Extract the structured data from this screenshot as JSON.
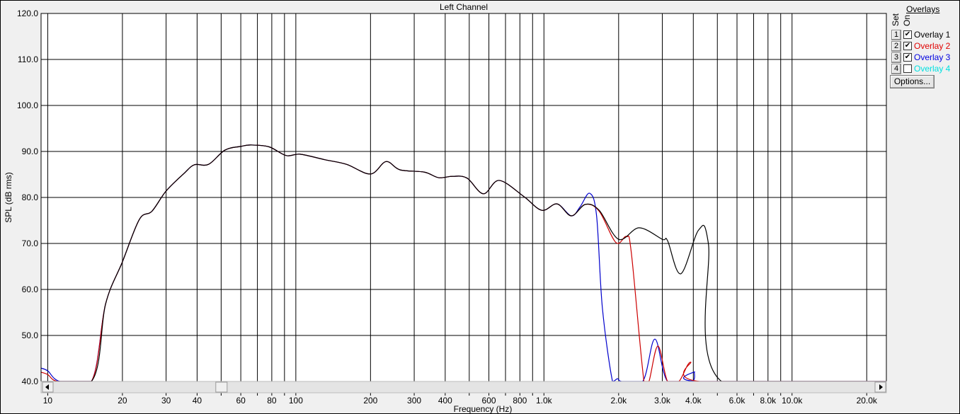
{
  "chart_data": {
    "type": "line",
    "title": "Left Channel",
    "xlabel": "Frequency (Hz)",
    "ylabel": "SPL (dB rms)",
    "xscale": "log",
    "xlim": [
      9.4,
      24000
    ],
    "ylim": [
      40,
      120
    ],
    "grid": true,
    "yticks": [
      "40.0",
      "50.0",
      "60.0",
      "70.0",
      "80.0",
      "90.0",
      "100.0",
      "110.0",
      "120.0"
    ],
    "xtick_labels": [
      {
        "f": 10,
        "label": "10"
      },
      {
        "f": 20,
        "label": "20"
      },
      {
        "f": 30,
        "label": "30"
      },
      {
        "f": 40,
        "label": "40"
      },
      {
        "f": 60,
        "label": "60"
      },
      {
        "f": 80,
        "label": "80"
      },
      {
        "f": 100,
        "label": "100"
      },
      {
        "f": 200,
        "label": "200"
      },
      {
        "f": 300,
        "label": "300"
      },
      {
        "f": 400,
        "label": "400"
      },
      {
        "f": 600,
        "label": "600"
      },
      {
        "f": 800,
        "label": "800"
      },
      {
        "f": 1000,
        "label": "1.0k"
      },
      {
        "f": 2000,
        "label": "2.0k"
      },
      {
        "f": 3000,
        "label": "3.0k"
      },
      {
        "f": 4000,
        "label": "4.0k"
      },
      {
        "f": 6000,
        "label": "6.0k"
      },
      {
        "f": 8000,
        "label": "8.0k"
      },
      {
        "f": 10000,
        "label": "10.0k"
      },
      {
        "f": 20000,
        "label": "20.0k"
      }
    ],
    "xgrid": [
      10,
      20,
      30,
      40,
      50,
      60,
      70,
      80,
      90,
      100,
      200,
      300,
      400,
      500,
      600,
      700,
      800,
      900,
      1000,
      2000,
      3000,
      4000,
      5000,
      6000,
      7000,
      8000,
      9000,
      10000,
      20000
    ],
    "series": [
      {
        "name": "Overlay 1",
        "color": "#000000",
        "points": [
          [
            9.4,
            40
          ],
          [
            15,
            40
          ],
          [
            17.1,
            56.8
          ],
          [
            20,
            66
          ],
          [
            23.4,
            75.2
          ],
          [
            26.3,
            77
          ],
          [
            30,
            81.4
          ],
          [
            35.4,
            85.2
          ],
          [
            39,
            87.1
          ],
          [
            44.5,
            87.2
          ],
          [
            51.8,
            90.3
          ],
          [
            60,
            91.1
          ],
          [
            66,
            91.4
          ],
          [
            78,
            91
          ],
          [
            91.5,
            89.1
          ],
          [
            104,
            89.4
          ],
          [
            131,
            88.2
          ],
          [
            160,
            87.2
          ],
          [
            200,
            85.1
          ],
          [
            231,
            87.8
          ],
          [
            263,
            86
          ],
          [
            330,
            85.5
          ],
          [
            376,
            84.3
          ],
          [
            429,
            84.6
          ],
          [
            490,
            84.2
          ],
          [
            570,
            80.8
          ],
          [
            660,
            83.7
          ],
          [
            830,
            80.2
          ],
          [
            980,
            77.2
          ],
          [
            1130,
            78.6
          ],
          [
            1290,
            76
          ],
          [
            1470,
            78.5
          ],
          [
            1670,
            77.2
          ],
          [
            2000,
            70.9
          ],
          [
            2420,
            73.4
          ],
          [
            3000,
            70.9
          ],
          [
            3150,
            70.6
          ],
          [
            3560,
            63.4
          ],
          [
            4200,
            72.9
          ],
          [
            4600,
            70
          ],
          [
            5200,
            40
          ],
          [
            24000,
            40
          ]
        ]
      },
      {
        "name": "Overlay 2",
        "color": "#cc0000",
        "points": [
          [
            9.4,
            42
          ],
          [
            10,
            41.5
          ],
          [
            11,
            40
          ],
          [
            15,
            40
          ],
          [
            17.1,
            56.8
          ],
          [
            20,
            66
          ],
          [
            23.4,
            75.2
          ],
          [
            26.3,
            77
          ],
          [
            30,
            81.4
          ],
          [
            35.4,
            85.2
          ],
          [
            39,
            87.1
          ],
          [
            44.5,
            87.2
          ],
          [
            51.8,
            90.3
          ],
          [
            60,
            91.1
          ],
          [
            66,
            91.4
          ],
          [
            78,
            91
          ],
          [
            91.5,
            89.1
          ],
          [
            104,
            89.4
          ],
          [
            131,
            88.2
          ],
          [
            160,
            87.2
          ],
          [
            200,
            85.1
          ],
          [
            231,
            87.8
          ],
          [
            263,
            86
          ],
          [
            330,
            85.5
          ],
          [
            376,
            84.3
          ],
          [
            429,
            84.6
          ],
          [
            490,
            84.2
          ],
          [
            570,
            80.8
          ],
          [
            660,
            83.7
          ],
          [
            830,
            80.2
          ],
          [
            980,
            77.2
          ],
          [
            1130,
            78.6
          ],
          [
            1290,
            76
          ],
          [
            1470,
            78.5
          ],
          [
            1670,
            77
          ],
          [
            1950,
            70.2
          ],
          [
            2150,
            71.5
          ],
          [
            2250,
            68
          ],
          [
            2530,
            40
          ],
          [
            2650,
            40
          ],
          [
            2880,
            47.7
          ],
          [
            3150,
            40
          ],
          [
            3500,
            40
          ],
          [
            3900,
            44.2
          ],
          [
            4250,
            40
          ],
          [
            24000,
            40
          ]
        ]
      },
      {
        "name": "Overlay 3",
        "color": "#0000cc",
        "points": [
          [
            9.4,
            42.9
          ],
          [
            10,
            42.3
          ],
          [
            11.2,
            40
          ],
          [
            15,
            40
          ],
          [
            17.1,
            56.8
          ],
          [
            20,
            66
          ],
          [
            23.4,
            75.2
          ],
          [
            26.3,
            77
          ],
          [
            30,
            81.4
          ],
          [
            35.4,
            85.2
          ],
          [
            39,
            87.1
          ],
          [
            44.5,
            87.2
          ],
          [
            51.8,
            90.3
          ],
          [
            60,
            91.1
          ],
          [
            66,
            91.4
          ],
          [
            78,
            91
          ],
          [
            91.5,
            89.1
          ],
          [
            104,
            89.4
          ],
          [
            131,
            88.2
          ],
          [
            160,
            87.2
          ],
          [
            200,
            85.1
          ],
          [
            231,
            87.8
          ],
          [
            263,
            86
          ],
          [
            330,
            85.5
          ],
          [
            376,
            84.3
          ],
          [
            429,
            84.6
          ],
          [
            490,
            84.2
          ],
          [
            570,
            80.8
          ],
          [
            660,
            83.7
          ],
          [
            830,
            80.2
          ],
          [
            980,
            77.2
          ],
          [
            1130,
            78.6
          ],
          [
            1290,
            76
          ],
          [
            1400,
            78
          ],
          [
            1530,
            80.9
          ],
          [
            1630,
            76
          ],
          [
            1720,
            56
          ],
          [
            1890,
            40
          ],
          [
            1980,
            40.6
          ],
          [
            2060,
            40
          ],
          [
            2500,
            40
          ],
          [
            2800,
            49.2
          ],
          [
            3150,
            40
          ],
          [
            3950,
            40
          ],
          [
            4050,
            42.1
          ],
          [
            4200,
            40
          ],
          [
            24000,
            40
          ]
        ]
      }
    ]
  },
  "legend": {
    "header": "Overlays",
    "col_set": "Set",
    "col_on": "On",
    "items": [
      {
        "set": "1",
        "on": true,
        "label": "Overlay 1",
        "color": "#000000"
      },
      {
        "set": "2",
        "on": true,
        "label": "Overlay 2",
        "color": "#e00000"
      },
      {
        "set": "3",
        "on": true,
        "label": "Overlay 3",
        "color": "#0000e0"
      },
      {
        "set": "4",
        "on": false,
        "label": "Overlay 4",
        "color": "#00e0e0"
      }
    ],
    "options_label": "Options..."
  },
  "scrollbar": {
    "position": 0.2
  }
}
